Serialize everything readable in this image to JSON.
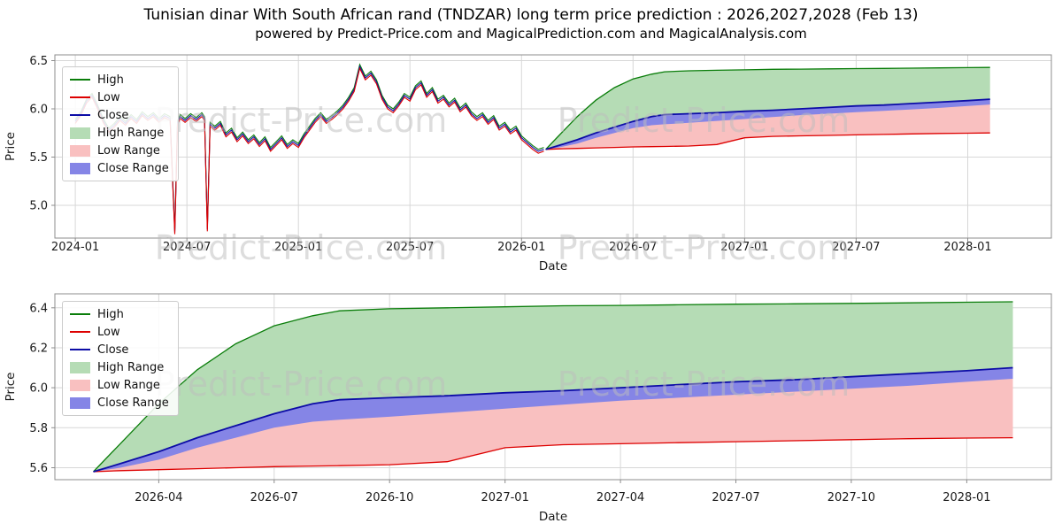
{
  "header": {
    "title": "Tunisian dinar With South African rand (TNDZAR) long term price prediction : 2026,2027,2028 (Feb 13)",
    "subtitle": "powered by Predict-Price.com and MagicalPrediction.com and MagicalAnalysis.com"
  },
  "watermark": "Predict-Price.com",
  "legend": [
    "High",
    "Low",
    "Close",
    "High Range",
    "Low Range",
    "Close Range"
  ],
  "colors": {
    "high": "#0a7d0a",
    "low": "#dd0000",
    "close": "#0c0ca6",
    "high_range": "#b5dcb5",
    "low_range": "#f9c0c0",
    "close_range": "#8585e6",
    "grid": "#d7d7d7",
    "frame": "#8c8c8c",
    "tick_text": "#1a1a1a",
    "watermark_gray": "#bdbdbd"
  },
  "chart_data": [
    {
      "type": "line",
      "name": "history-and-forecast",
      "xlabel": "Date",
      "ylabel": "Price",
      "x_unit": "months_since_2024-01",
      "xlim": [
        -1.1,
        52.5
      ],
      "ylim": [
        4.66,
        6.56
      ],
      "yticks": [
        5.0,
        5.5,
        6.0,
        6.5
      ],
      "xticks": [
        {
          "t": 0,
          "label": "2024-01"
        },
        {
          "t": 6,
          "label": "2024-07"
        },
        {
          "t": 12,
          "label": "2025-01"
        },
        {
          "t": 18,
          "label": "2025-07"
        },
        {
          "t": 24,
          "label": "2026-01"
        },
        {
          "t": 30,
          "label": "2026-07"
        },
        {
          "t": 36,
          "label": "2027-01"
        },
        {
          "t": 42,
          "label": "2027-07"
        },
        {
          "t": 48,
          "label": "2028-01"
        }
      ],
      "historical": {
        "t": [
          0,
          0.3,
          0.6,
          0.9,
          1.2,
          1.5,
          1.8,
          2.1,
          2.4,
          2.7,
          3,
          3.3,
          3.6,
          3.9,
          4.2,
          4.5,
          4.8,
          5.1,
          5.35,
          5.5,
          5.65,
          5.9,
          6.2,
          6.5,
          6.8,
          6.95,
          7.1,
          7.25,
          7.5,
          7.8,
          8.1,
          8.4,
          8.7,
          9,
          9.3,
          9.6,
          9.9,
          10.2,
          10.5,
          10.8,
          11.1,
          11.4,
          11.7,
          12,
          12.3,
          12.6,
          12.9,
          13.2,
          13.5,
          13.8,
          14.1,
          14.4,
          14.7,
          15,
          15.3,
          15.6,
          15.9,
          16.2,
          16.5,
          16.8,
          17.1,
          17.4,
          17.7,
          18,
          18.3,
          18.6,
          18.9,
          19.2,
          19.5,
          19.8,
          20.1,
          20.4,
          20.7,
          21,
          21.3,
          21.6,
          21.9,
          22.2,
          22.5,
          22.8,
          23.1,
          23.4,
          23.7,
          24,
          24.3,
          24.6,
          24.9,
          25.2
        ],
        "close": [
          5.87,
          5.95,
          6.08,
          6.14,
          6.02,
          5.88,
          5.78,
          5.83,
          5.9,
          5.85,
          5.92,
          5.87,
          5.95,
          5.9,
          5.94,
          5.88,
          5.93,
          5.9,
          4.72,
          5.86,
          5.92,
          5.88,
          5.93,
          5.89,
          5.94,
          5.9,
          4.75,
          5.84,
          5.8,
          5.85,
          5.73,
          5.78,
          5.68,
          5.74,
          5.66,
          5.71,
          5.63,
          5.69,
          5.58,
          5.64,
          5.7,
          5.61,
          5.66,
          5.62,
          5.72,
          5.8,
          5.88,
          5.94,
          5.87,
          5.91,
          5.96,
          6.02,
          6.1,
          6.2,
          6.44,
          6.32,
          6.37,
          6.28,
          6.12,
          6.02,
          5.98,
          6.05,
          6.14,
          6.1,
          6.22,
          6.27,
          6.14,
          6.2,
          6.08,
          6.12,
          6.04,
          6.09,
          5.99,
          6.04,
          5.95,
          5.9,
          5.94,
          5.86,
          5.91,
          5.8,
          5.84,
          5.76,
          5.8,
          5.7,
          5.65,
          5.6,
          5.56,
          5.58
        ],
        "high_offset": 0.02,
        "low_offset": 0.02
      },
      "forecast": {
        "t": [
          25.3,
          26,
          27,
          28,
          29,
          30,
          31,
          31.7,
          33,
          34.5,
          36,
          37.5,
          39,
          40.5,
          42,
          43.5,
          45,
          46.5,
          48,
          49.2
        ],
        "close": [
          5.58,
          5.62,
          5.68,
          5.75,
          5.81,
          5.87,
          5.92,
          5.94,
          5.95,
          5.96,
          5.975,
          5.985,
          6.0,
          6.015,
          6.03,
          6.04,
          6.055,
          6.07,
          6.085,
          6.1
        ],
        "close_lower": [
          5.58,
          5.6,
          5.64,
          5.7,
          5.75,
          5.8,
          5.83,
          5.84,
          5.855,
          5.875,
          5.895,
          5.915,
          5.935,
          5.95,
          5.965,
          5.98,
          5.995,
          6.01,
          6.03,
          6.045
        ],
        "high": [
          5.58,
          5.72,
          5.92,
          6.09,
          6.22,
          6.31,
          6.36,
          6.385,
          6.395,
          6.4,
          6.405,
          6.41,
          6.412,
          6.415,
          6.418,
          6.42,
          6.422,
          6.425,
          6.428,
          6.43
        ],
        "low": [
          5.58,
          5.585,
          5.59,
          5.595,
          5.6,
          5.605,
          5.608,
          5.61,
          5.615,
          5.63,
          5.7,
          5.715,
          5.72,
          5.725,
          5.73,
          5.735,
          5.74,
          5.745,
          5.748,
          5.75
        ]
      }
    },
    {
      "type": "line",
      "name": "forecast-detail",
      "xlabel": "Date",
      "ylabel": "Price",
      "x_unit": "months_since_2024-01",
      "xlim": [
        24.3,
        50.2
      ],
      "ylim": [
        5.54,
        6.47
      ],
      "yticks": [
        5.6,
        5.8,
        6.0,
        6.2,
        6.4
      ],
      "xticks": [
        {
          "t": 27,
          "label": "2026-04"
        },
        {
          "t": 30,
          "label": "2026-07"
        },
        {
          "t": 33,
          "label": "2026-10"
        },
        {
          "t": 36,
          "label": "2027-01"
        },
        {
          "t": 39,
          "label": "2027-04"
        },
        {
          "t": 42,
          "label": "2027-07"
        },
        {
          "t": 45,
          "label": "2027-10"
        },
        {
          "t": 48,
          "label": "2028-01"
        }
      ],
      "forecast": {
        "t": [
          25.3,
          26,
          27,
          28,
          29,
          30,
          31,
          31.7,
          33,
          34.5,
          36,
          37.5,
          39,
          40.5,
          42,
          43.5,
          45,
          46.5,
          48,
          49.2
        ],
        "close": [
          5.58,
          5.62,
          5.68,
          5.75,
          5.81,
          5.87,
          5.92,
          5.94,
          5.95,
          5.96,
          5.975,
          5.985,
          6.0,
          6.015,
          6.03,
          6.04,
          6.055,
          6.07,
          6.085,
          6.1
        ],
        "close_lower": [
          5.58,
          5.6,
          5.64,
          5.7,
          5.75,
          5.8,
          5.83,
          5.84,
          5.855,
          5.875,
          5.895,
          5.915,
          5.935,
          5.95,
          5.965,
          5.98,
          5.995,
          6.01,
          6.03,
          6.045
        ],
        "high": [
          5.58,
          5.72,
          5.92,
          6.09,
          6.22,
          6.31,
          6.36,
          6.385,
          6.395,
          6.4,
          6.405,
          6.41,
          6.412,
          6.415,
          6.418,
          6.42,
          6.422,
          6.425,
          6.428,
          6.43
        ],
        "low": [
          5.58,
          5.585,
          5.59,
          5.595,
          5.6,
          5.605,
          5.608,
          5.61,
          5.615,
          5.63,
          5.7,
          5.715,
          5.72,
          5.725,
          5.73,
          5.735,
          5.74,
          5.745,
          5.748,
          5.75
        ]
      }
    }
  ]
}
